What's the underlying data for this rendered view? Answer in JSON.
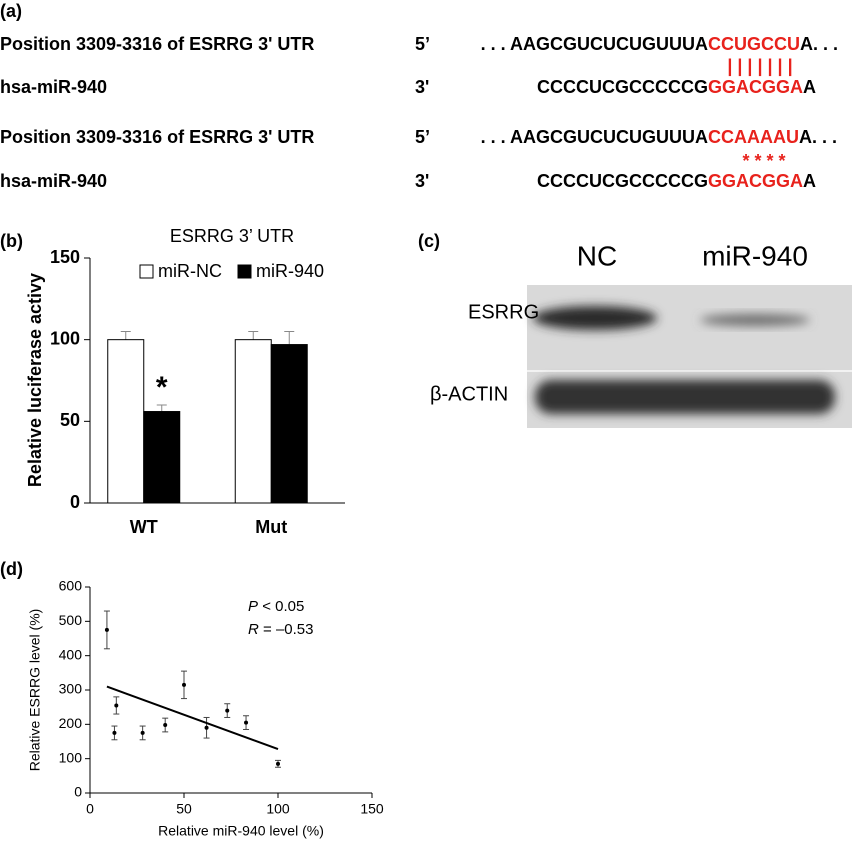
{
  "panel_a": {
    "label": "(a)",
    "rows": [
      {
        "name": "Position 3309-3316 of ESRRG 3' UTR",
        "end": "5’",
        "before": ". . . AAGCGUCUCUGUUUA",
        "site": "CCUGCCU",
        "after": "A. . ."
      },
      {
        "name": "hsa-miR-940",
        "end": "3'",
        "before": "CCCCUCGCCCCCG",
        "site": "GGACGGA",
        "after": "A"
      },
      {
        "name": "Position 3309-3316 of ESRRG 3' UTR",
        "end": "5’",
        "before": ". . . AAGCGUCUCUGUUUA",
        "site": "CCAAAAU",
        "after": "A. . ."
      },
      {
        "name": "hsa-miR-940",
        "end": "3'",
        "before": "CCCCUCGCCCCCG",
        "site": "GGACGGA",
        "after": "A"
      }
    ],
    "pairing": "| | | | | | |",
    "mismatch": "* * * *"
  },
  "panel_c": {
    "label": "(c)",
    "columns": [
      "NC",
      "miR-940"
    ],
    "rows": [
      "ESRRG",
      "β-ACTIN"
    ]
  },
  "chart_data": [
    {
      "type": "bar",
      "panel_label": "(b)",
      "title": "ESRRG 3’ UTR",
      "ylabel": "Relative luciferase activy",
      "categories": [
        "WT",
        "Mut"
      ],
      "series": [
        {
          "name": "miR-NC",
          "color": "#ffffff",
          "values": [
            100,
            100
          ],
          "errors": [
            5,
            5
          ]
        },
        {
          "name": "miR-940",
          "color": "#000000",
          "values": [
            56,
            97
          ],
          "errors": [
            4,
            8
          ]
        }
      ],
      "significance": "*",
      "ylim": [
        0,
        150
      ],
      "yticks": [
        0,
        50,
        100,
        150
      ]
    },
    {
      "type": "scatter",
      "panel_label": "(d)",
      "xlabel": "Relative miR-940 level (%)",
      "ylabel": "Relative ESRRG level (%)",
      "x": [
        9,
        13,
        14,
        28,
        40,
        50,
        62,
        73,
        83,
        100
      ],
      "values": [
        475,
        175,
        255,
        175,
        198,
        315,
        190,
        240,
        205,
        85
      ],
      "errors": [
        55,
        20,
        25,
        20,
        20,
        40,
        30,
        20,
        20,
        10
      ],
      "color": "#000000",
      "trendline": {
        "x": [
          9,
          100
        ],
        "values": [
          310,
          128
        ]
      },
      "stats": [
        {
          "symbol": "P",
          "text": "< 0.05"
        },
        {
          "symbol": "R",
          "text": "= –0.53"
        }
      ],
      "xlim": [
        0,
        150
      ],
      "xticks": [
        0,
        50,
        100,
        150
      ],
      "ylim": [
        0,
        600
      ],
      "yticks": [
        0,
        100,
        200,
        300,
        400,
        500,
        600
      ]
    }
  ]
}
